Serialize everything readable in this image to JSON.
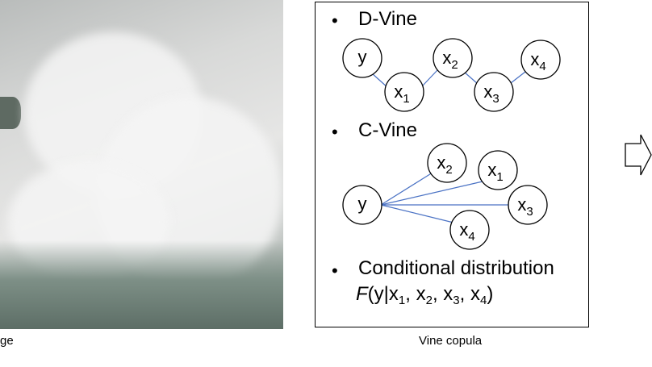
{
  "captions": {
    "left": "ge",
    "middle": "Vine copula"
  },
  "panel": {
    "bullet": "•",
    "dvine": {
      "title": "D-Vine",
      "nodes": [
        "y",
        "x1",
        "x2",
        "x3",
        "x4"
      ]
    },
    "cvine": {
      "title": "C-Vine",
      "nodes": [
        "y",
        "x2",
        "x1",
        "x3",
        "x4"
      ]
    },
    "conditional": {
      "title": "Conditional distribution",
      "formula": "F(y|x1, x2, x3, x4)"
    }
  },
  "colors": {
    "edge": "#4a72c4",
    "node_stroke": "#000000"
  },
  "icons": {
    "photo": "ocean-wave-spray-photo",
    "arrow": "right-arrow-icon"
  }
}
